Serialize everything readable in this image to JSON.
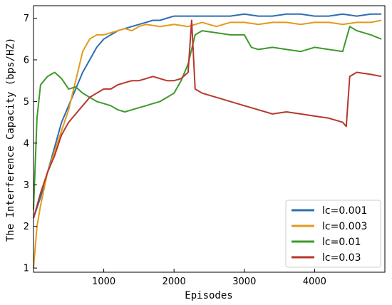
{
  "chart_data": {
    "type": "line",
    "title": "",
    "xlabel": "Episodes",
    "ylabel": "The Interference Capacity (bps/HZ)",
    "xlim": [
      0,
      5000
    ],
    "ylim": [
      0.9,
      7.3
    ],
    "xticks": [
      1000,
      2000,
      3000,
      4000
    ],
    "xtick_labels": [
      "1000",
      "2000",
      "3000",
      "4000"
    ],
    "yticks": [
      1,
      2,
      3,
      4,
      5,
      6,
      7
    ],
    "ytick_labels": [
      "1",
      "2",
      "3",
      "4",
      "5",
      "6",
      "7"
    ],
    "grid": false,
    "legend_position": "bottom-right",
    "series": [
      {
        "name": "lc=0.001",
        "color": "#2E6DB4",
        "x": [
          0,
          100,
          200,
          300,
          400,
          500,
          600,
          700,
          800,
          900,
          1000,
          1100,
          1200,
          1300,
          1400,
          1500,
          1600,
          1700,
          1800,
          1900,
          2000,
          2200,
          2400,
          2600,
          2800,
          3000,
          3200,
          3400,
          3600,
          3800,
          4000,
          4200,
          4400,
          4600,
          4800,
          4950
        ],
        "y": [
          2.2,
          2.7,
          3.3,
          3.9,
          4.5,
          4.9,
          5.3,
          5.7,
          6.0,
          6.3,
          6.5,
          6.6,
          6.7,
          6.75,
          6.8,
          6.85,
          6.9,
          6.95,
          6.95,
          7.0,
          7.05,
          7.05,
          7.05,
          7.05,
          7.05,
          7.1,
          7.05,
          7.05,
          7.1,
          7.1,
          7.05,
          7.05,
          7.1,
          7.05,
          7.1,
          7.1
        ]
      },
      {
        "name": "lc=0.003",
        "color": "#E39A1D",
        "x": [
          0,
          50,
          100,
          200,
          300,
          400,
          500,
          600,
          700,
          800,
          900,
          1000,
          1100,
          1200,
          1300,
          1400,
          1500,
          1600,
          1800,
          2000,
          2200,
          2400,
          2600,
          2800,
          3000,
          3200,
          3400,
          3600,
          3800,
          4000,
          4200,
          4400,
          4600,
          4800,
          4950
        ],
        "y": [
          1.0,
          2.0,
          2.5,
          3.3,
          3.8,
          4.3,
          4.8,
          5.5,
          6.2,
          6.5,
          6.6,
          6.6,
          6.65,
          6.7,
          6.75,
          6.7,
          6.8,
          6.85,
          6.8,
          6.85,
          6.8,
          6.9,
          6.8,
          6.9,
          6.9,
          6.85,
          6.9,
          6.9,
          6.85,
          6.9,
          6.9,
          6.85,
          6.9,
          6.9,
          6.95
        ]
      },
      {
        "name": "lc=0.01",
        "color": "#3E9A2B",
        "x": [
          0,
          50,
          100,
          200,
          300,
          400,
          500,
          600,
          700,
          800,
          900,
          1000,
          1100,
          1200,
          1300,
          1400,
          1500,
          1600,
          1700,
          1800,
          1900,
          2000,
          2100,
          2200,
          2300,
          2400,
          2600,
          2800,
          3000,
          3100,
          3200,
          3400,
          3600,
          3800,
          4000,
          4200,
          4400,
          4500,
          4600,
          4800,
          4950
        ],
        "y": [
          2.4,
          4.6,
          5.4,
          5.6,
          5.7,
          5.55,
          5.3,
          5.35,
          5.2,
          5.1,
          5.0,
          4.95,
          4.9,
          4.8,
          4.75,
          4.8,
          4.85,
          4.9,
          4.95,
          5.0,
          5.1,
          5.2,
          5.5,
          5.9,
          6.6,
          6.7,
          6.65,
          6.6,
          6.6,
          6.3,
          6.25,
          6.3,
          6.25,
          6.2,
          6.3,
          6.25,
          6.2,
          6.8,
          6.7,
          6.6,
          6.5
        ]
      },
      {
        "name": "lc=0.03",
        "color": "#B7372C",
        "x": [
          0,
          100,
          200,
          300,
          400,
          500,
          600,
          700,
          800,
          900,
          1000,
          1100,
          1200,
          1300,
          1400,
          1500,
          1600,
          1700,
          1800,
          1900,
          2000,
          2100,
          2200,
          2250,
          2300,
          2400,
          2600,
          2800,
          3000,
          3200,
          3400,
          3600,
          3800,
          4000,
          4200,
          4400,
          4450,
          4500,
          4600,
          4800,
          4950
        ],
        "y": [
          2.2,
          2.8,
          3.3,
          3.7,
          4.2,
          4.5,
          4.7,
          4.9,
          5.1,
          5.2,
          5.3,
          5.3,
          5.4,
          5.45,
          5.5,
          5.5,
          5.55,
          5.6,
          5.55,
          5.5,
          5.5,
          5.55,
          5.7,
          6.95,
          5.3,
          5.2,
          5.1,
          5.0,
          4.9,
          4.8,
          4.7,
          4.75,
          4.7,
          4.65,
          4.6,
          4.5,
          4.4,
          5.6,
          5.7,
          5.65,
          5.6
        ]
      }
    ]
  }
}
